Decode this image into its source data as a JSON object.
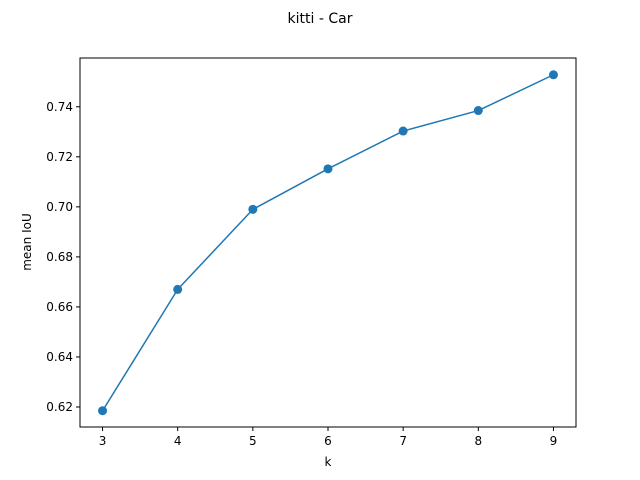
{
  "chart_data": {
    "type": "line",
    "title": "kitti - Car",
    "xlabel": "k",
    "ylabel": "mean IoU",
    "x": [
      3,
      4,
      5,
      6,
      7,
      8,
      9
    ],
    "series": [
      {
        "values": [
          0.6185,
          0.667,
          0.699,
          0.7152,
          0.7303,
          0.7385,
          0.7528
        ],
        "color": "#1f77b4"
      }
    ],
    "xlim": [
      2.7,
      9.3
    ],
    "ylim": [
      0.612,
      0.7595
    ],
    "xticks": [
      3,
      4,
      5,
      6,
      7,
      8,
      9
    ],
    "yticks": [
      0.62,
      0.64,
      0.66,
      0.68,
      0.7,
      0.72,
      0.74
    ],
    "ytick_labels": [
      "0.62",
      "0.64",
      "0.66",
      "0.68",
      "0.70",
      "0.72",
      "0.74"
    ],
    "grid": false,
    "legend": false,
    "markers": "circle"
  }
}
